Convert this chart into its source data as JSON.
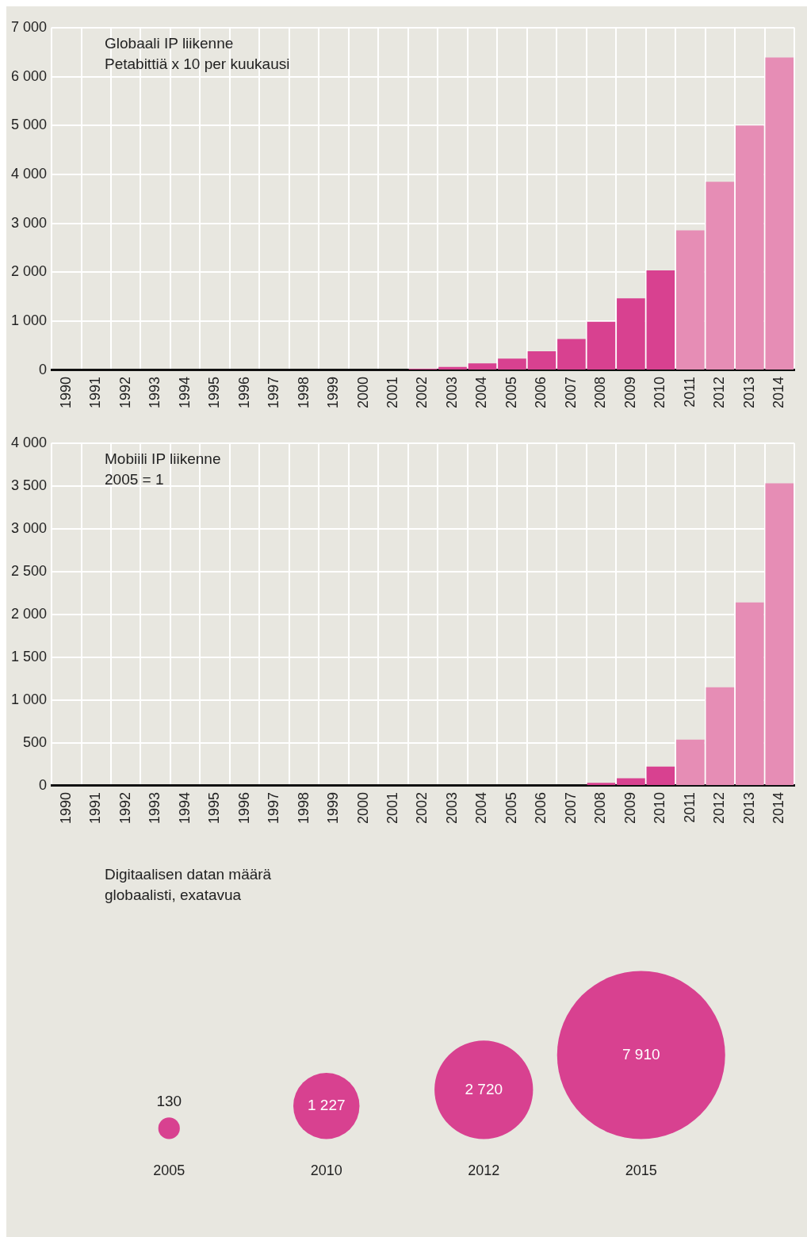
{
  "chart_data": [
    {
      "type": "bar",
      "title": "Globaali IP liikenne",
      "subtitle": "Petabittiä x 10 per kuukausi",
      "categories": [
        "1990",
        "1991",
        "1992",
        "1993",
        "1994",
        "1995",
        "1996",
        "1997",
        "1998",
        "1999",
        "2000",
        "2001",
        "2002",
        "2003",
        "2004",
        "2005",
        "2006",
        "2007",
        "2008",
        "2009",
        "2010",
        "2011",
        "2012",
        "2013",
        "2014"
      ],
      "values": [
        0,
        0,
        0,
        0,
        0,
        0,
        0,
        0,
        0,
        0,
        0,
        0,
        30,
        70,
        140,
        240,
        390,
        640,
        990,
        1470,
        2040,
        2860,
        3850,
        5000,
        6390
      ],
      "colors": [
        "#d84190",
        "#d84190",
        "#d84190",
        "#d84190",
        "#d84190",
        "#d84190",
        "#d84190",
        "#d84190",
        "#d84190",
        "#d84190",
        "#d84190",
        "#d84190",
        "#d84190",
        "#d84190",
        "#d84190",
        "#d84190",
        "#d84190",
        "#d84190",
        "#d84190",
        "#d84190",
        "#d84190",
        "#e68db5",
        "#e68db5",
        "#e68db5",
        "#e68db5"
      ],
      "ylim": [
        0,
        7000
      ],
      "yticks": [
        {
          "value": 0,
          "label": "0"
        },
        {
          "value": 1000,
          "label": "1 000"
        },
        {
          "value": 2000,
          "label": "2 000"
        },
        {
          "value": 3000,
          "label": "3 000"
        },
        {
          "value": 4000,
          "label": "4 000"
        },
        {
          "value": 5000,
          "label": "5 000"
        },
        {
          "value": 6000,
          "label": "6 000"
        },
        {
          "value": 7000,
          "label": "7 000"
        }
      ],
      "grid": true,
      "legend": false
    },
    {
      "type": "bar",
      "title": "Mobiili IP liikenne",
      "subtitle": "2005 = 1",
      "categories": [
        "1990",
        "1991",
        "1992",
        "1993",
        "1994",
        "1995",
        "1996",
        "1997",
        "1998",
        "1999",
        "2000",
        "2001",
        "2002",
        "2003",
        "2004",
        "2005",
        "2006",
        "2007",
        "2008",
        "2009",
        "2010",
        "2011",
        "2012",
        "2013",
        "2014"
      ],
      "values": [
        0,
        0,
        0,
        0,
        0,
        0,
        0,
        0,
        0,
        0,
        0,
        0,
        0,
        0,
        0,
        0,
        0,
        0,
        35,
        88,
        224,
        538,
        1150,
        2140,
        3530
      ],
      "colors": [
        "#d84190",
        "#d84190",
        "#d84190",
        "#d84190",
        "#d84190",
        "#d84190",
        "#d84190",
        "#d84190",
        "#d84190",
        "#d84190",
        "#d84190",
        "#d84190",
        "#d84190",
        "#d84190",
        "#d84190",
        "#d84190",
        "#d84190",
        "#d84190",
        "#d84190",
        "#d84190",
        "#d84190",
        "#e68db5",
        "#e68db5",
        "#e68db5",
        "#e68db5"
      ],
      "ylim": [
        0,
        4000
      ],
      "yticks": [
        {
          "value": 0,
          "label": "0"
        },
        {
          "value": 500,
          "label": "500"
        },
        {
          "value": 1000,
          "label": "1 000"
        },
        {
          "value": 1500,
          "label": "1 500"
        },
        {
          "value": 2000,
          "label": "2 000"
        },
        {
          "value": 2500,
          "label": "2 500"
        },
        {
          "value": 3000,
          "label": "3 000"
        },
        {
          "value": 3500,
          "label": "3 500"
        },
        {
          "value": 4000,
          "label": "4 000"
        }
      ],
      "grid": true,
      "legend": false
    },
    {
      "type": "other",
      "title": "Digitaalisen datan määrä globaalisti, exatavua",
      "categories": [
        "2005",
        "2010",
        "2012",
        "2015"
      ],
      "values": [
        130,
        1227,
        2720,
        7910
      ],
      "value_labels": [
        "130",
        "1 227",
        "2 720",
        "7 910"
      ],
      "color": "#d84190",
      "legend": false
    }
  ]
}
